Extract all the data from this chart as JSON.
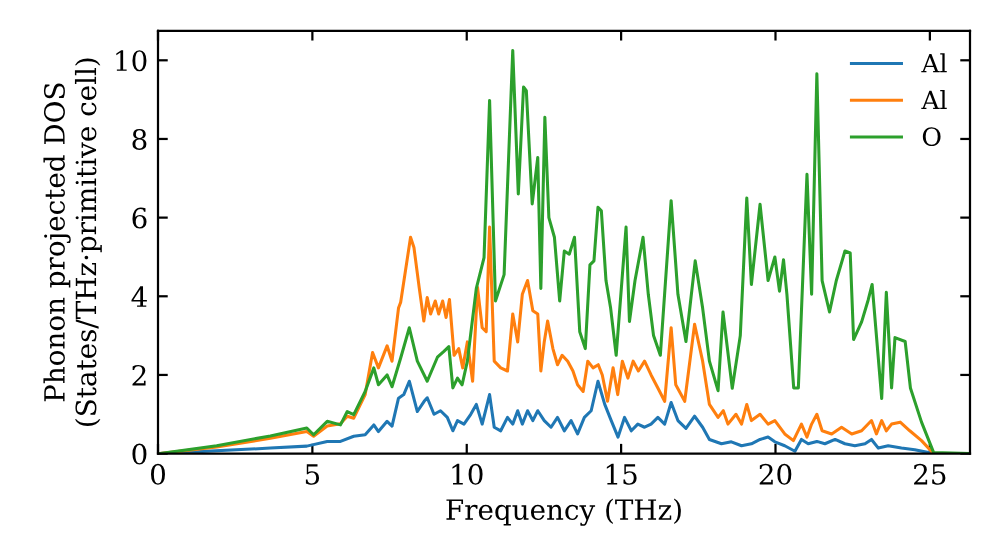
{
  "chart_data": {
    "type": "line",
    "xlabel": "Frequency (THz)",
    "ylabel": "Phonon projected DOS\n(States/THz·primitive cell)",
    "xlim": [
      0,
      26.3
    ],
    "ylim": [
      0,
      10.75
    ],
    "xticks": [
      0,
      5,
      10,
      15,
      20,
      25
    ],
    "yticks": [
      0,
      2,
      4,
      6,
      8,
      10
    ],
    "legend": "top right",
    "grid": false,
    "marker": "none",
    "line_style": "solid",
    "series": [
      {
        "name": "Al",
        "color": "#1f77b4",
        "x": [
          0.07,
          3.64,
          4.82,
          5.48,
          5.91,
          6.34,
          6.71,
          6.99,
          7.14,
          7.42,
          7.58,
          7.79,
          7.96,
          8.14,
          8.4,
          8.62,
          8.72,
          8.94,
          9.15,
          9.37,
          9.55,
          9.7,
          9.91,
          10.13,
          10.31,
          10.5,
          10.74,
          10.89,
          11.1,
          11.32,
          11.49,
          11.65,
          11.8,
          11.97,
          12.14,
          12.3,
          12.51,
          12.73,
          12.94,
          13.16,
          13.38,
          13.59,
          13.81,
          14.03,
          14.25,
          14.47,
          14.68,
          14.9,
          15.11,
          15.33,
          15.54,
          15.76,
          15.97,
          16.19,
          16.41,
          16.62,
          16.84,
          17.1,
          17.38,
          17.64,
          17.86,
          18.25,
          18.57,
          18.9,
          19.22,
          19.5,
          19.76,
          19.98,
          20.3,
          20.63,
          20.84,
          21.06,
          21.34,
          21.6,
          21.93,
          22.25,
          22.57,
          22.9,
          23.11,
          23.33,
          23.65,
          24.08,
          24.51,
          25.12,
          26.3
        ],
        "values": [
          0,
          0.14,
          0.19,
          0.31,
          0.31,
          0.44,
          0.48,
          0.73,
          0.56,
          0.82,
          0.7,
          1.41,
          1.5,
          1.84,
          1.07,
          1.33,
          1.42,
          1.0,
          1.09,
          0.92,
          0.58,
          0.84,
          0.75,
          1.0,
          1.25,
          0.75,
          1.5,
          0.67,
          0.58,
          0.92,
          0.75,
          1.09,
          0.75,
          1.09,
          0.84,
          1.09,
          0.84,
          0.67,
          0.92,
          0.58,
          0.84,
          0.5,
          0.92,
          1.09,
          1.84,
          1.25,
          0.84,
          0.42,
          0.92,
          0.58,
          0.75,
          0.67,
          0.75,
          0.92,
          0.75,
          1.3,
          0.84,
          0.64,
          0.95,
          0.67,
          0.36,
          0.25,
          0.3,
          0.2,
          0.25,
          0.36,
          0.42,
          0.3,
          0.2,
          0.06,
          0.36,
          0.25,
          0.31,
          0.25,
          0.36,
          0.25,
          0.2,
          0.25,
          0.36,
          0.14,
          0.2,
          0.14,
          0.1,
          0,
          0
        ]
      },
      {
        "name": "Al",
        "color": "#ff7f0e",
        "x": [
          0.07,
          1.9,
          3.64,
          4.82,
          5.04,
          5.48,
          5.91,
          6.13,
          6.34,
          6.71,
          6.95,
          7.14,
          7.42,
          7.58,
          7.79,
          7.86,
          8.18,
          8.29,
          8.46,
          8.61,
          8.72,
          8.83,
          8.98,
          9.09,
          9.22,
          9.33,
          9.44,
          9.59,
          9.74,
          9.87,
          10.02,
          10.19,
          10.35,
          10.5,
          10.63,
          10.74,
          10.89,
          11.1,
          11.32,
          11.49,
          11.65,
          11.8,
          11.97,
          12.14,
          12.3,
          12.4,
          12.51,
          12.62,
          12.79,
          12.94,
          13.09,
          13.27,
          13.44,
          13.59,
          13.77,
          13.92,
          14.09,
          14.26,
          14.39,
          14.56,
          14.74,
          14.89,
          15.04,
          15.22,
          15.39,
          15.56,
          15.76,
          15.97,
          16.19,
          16.41,
          16.62,
          16.77,
          17.06,
          17.38,
          17.64,
          17.86,
          18.14,
          18.31,
          18.46,
          18.72,
          18.9,
          19.07,
          19.22,
          19.5,
          19.76,
          19.98,
          20.3,
          20.58,
          20.84,
          21.02,
          21.17,
          21.34,
          21.51,
          21.82,
          22.14,
          22.47,
          22.79,
          23.11,
          23.27,
          23.44,
          23.59,
          23.76,
          24.04,
          24.35,
          24.73,
          25.12,
          26.3
        ],
        "values": [
          0,
          0.17,
          0.39,
          0.56,
          0.44,
          0.7,
          0.76,
          0.95,
          0.9,
          1.5,
          2.57,
          2.18,
          2.74,
          2.35,
          3.7,
          3.85,
          5.5,
          5.24,
          4.22,
          3.37,
          3.97,
          3.55,
          3.88,
          3.55,
          3.88,
          3.46,
          3.92,
          2.5,
          2.67,
          2.18,
          2.84,
          1.84,
          4.22,
          3.2,
          3.1,
          5.76,
          2.35,
          2.18,
          2.1,
          3.55,
          2.84,
          4.05,
          4.4,
          3.63,
          3.55,
          2.1,
          2.84,
          3.37,
          2.67,
          2.26,
          2.5,
          2.35,
          2.1,
          1.75,
          1.58,
          2.35,
          2.18,
          2.26,
          2.0,
          1.33,
          2.18,
          1.5,
          2.35,
          1.92,
          2.35,
          2.1,
          2.35,
          2.0,
          1.67,
          1.33,
          3.2,
          1.75,
          1.33,
          3.29,
          2.35,
          1.25,
          0.92,
          1.09,
          0.75,
          1.0,
          0.75,
          1.25,
          0.84,
          1.0,
          0.75,
          0.84,
          0.5,
          0.33,
          0.75,
          0.42,
          0.75,
          1.0,
          0.58,
          0.5,
          0.67,
          0.5,
          0.58,
          0.84,
          0.5,
          0.84,
          0.58,
          0.75,
          0.8,
          0.58,
          0.33,
          0,
          0
        ]
      },
      {
        "name": "O",
        "color": "#2ca02c",
        "x": [
          0.07,
          1.9,
          3.64,
          4.82,
          5.04,
          5.48,
          5.91,
          6.13,
          6.34,
          6.71,
          6.99,
          7.14,
          7.42,
          7.58,
          7.86,
          8.14,
          8.4,
          8.72,
          9.05,
          9.26,
          9.42,
          9.55,
          9.7,
          9.85,
          10.02,
          10.31,
          10.56,
          10.74,
          10.93,
          11.21,
          11.49,
          11.67,
          11.84,
          11.93,
          12.12,
          12.3,
          12.4,
          12.53,
          12.66,
          12.84,
          13.01,
          13.16,
          13.32,
          13.49,
          13.66,
          13.84,
          13.99,
          14.12,
          14.25,
          14.36,
          14.51,
          14.66,
          14.84,
          15.16,
          15.27,
          15.45,
          15.71,
          15.88,
          16.05,
          16.27,
          16.62,
          16.84,
          17.1,
          17.4,
          17.64,
          17.86,
          18.14,
          18.3,
          18.6,
          18.86,
          19.07,
          19.22,
          19.5,
          19.76,
          19.98,
          20.13,
          20.26,
          20.37,
          20.59,
          20.74,
          21.02,
          21.17,
          21.34,
          21.51,
          21.75,
          21.97,
          22.25,
          22.42,
          22.53,
          22.79,
          23.0,
          23.13,
          23.44,
          23.59,
          23.76,
          23.87,
          24.2,
          24.37,
          24.73,
          25.12,
          26.3
        ],
        "values": [
          0,
          0.2,
          0.45,
          0.65,
          0.48,
          0.82,
          0.73,
          1.07,
          0.99,
          1.58,
          2.18,
          1.75,
          2.0,
          1.7,
          2.43,
          3.2,
          2.35,
          1.84,
          2.45,
          2.6,
          2.72,
          1.67,
          1.92,
          1.75,
          2.35,
          4.2,
          4.98,
          8.98,
          3.88,
          4.55,
          10.25,
          6.6,
          9.32,
          9.23,
          6.35,
          7.53,
          4.2,
          8.55,
          6.0,
          5.5,
          3.88,
          5.15,
          5.07,
          5.5,
          3.1,
          2.67,
          4.8,
          4.9,
          6.26,
          6.17,
          4.4,
          3.7,
          2.5,
          5.76,
          3.36,
          4.4,
          5.5,
          4.05,
          3.0,
          2.5,
          6.43,
          4.05,
          2.85,
          4.9,
          3.7,
          2.35,
          1.6,
          3.6,
          1.66,
          3.0,
          6.5,
          4.3,
          6.34,
          4.4,
          5.0,
          4.13,
          4.93,
          4.05,
          1.67,
          1.67,
          7.1,
          4.05,
          9.66,
          4.4,
          3.6,
          4.4,
          5.15,
          5.1,
          2.9,
          3.35,
          3.9,
          4.3,
          1.4,
          4.1,
          1.67,
          2.95,
          2.85,
          1.67,
          0.8,
          0.03,
          0
        ]
      }
    ]
  }
}
